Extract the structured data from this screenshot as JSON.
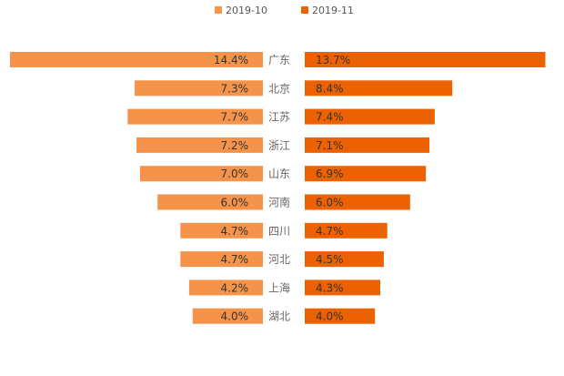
{
  "chart_data": {
    "type": "bar",
    "orientation": "horizontal-mirrored",
    "categories": [
      "广东",
      "北京",
      "江苏",
      "浙江",
      "山东",
      "河南",
      "四川",
      "河北",
      "上海",
      "湖北"
    ],
    "series": [
      {
        "name": "2019-10",
        "color": "#f5934a",
        "values": [
          14.4,
          7.3,
          7.7,
          7.2,
          7.0,
          6.0,
          4.7,
          4.7,
          4.2,
          4.0
        ],
        "labels": [
          "14.4%",
          "7.3%",
          "7.7%",
          "7.2%",
          "7.0%",
          "6.0%",
          "4.7%",
          "4.7%",
          "4.2%",
          "4.0%"
        ]
      },
      {
        "name": "2019-11",
        "color": "#ec6101",
        "values": [
          13.7,
          8.4,
          7.4,
          7.1,
          6.9,
          6.0,
          4.7,
          4.5,
          4.3,
          4.0
        ],
        "labels": [
          "13.7%",
          "8.4%",
          "7.4%",
          "7.1%",
          "6.9%",
          "6.0%",
          "4.7%",
          "4.5%",
          "4.3%",
          "4.0%"
        ]
      }
    ],
    "unit": "%",
    "legend": "top-center",
    "grid": false
  }
}
